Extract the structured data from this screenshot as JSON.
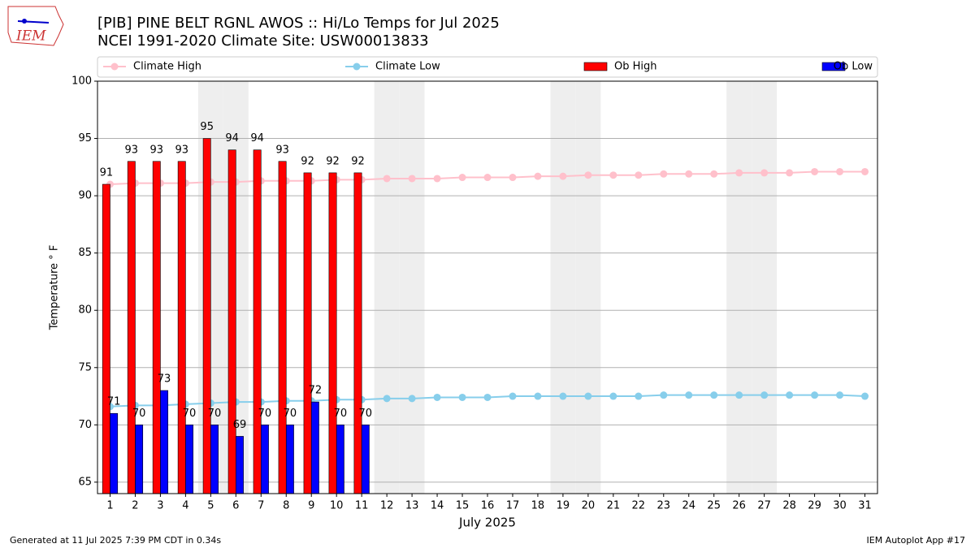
{
  "chart_data": {
    "type": "combo",
    "title": "[PIB] PINE BELT RGNL AWOS :: Hi/Lo Temps for Jul 2025",
    "subtitle": "NCEI 1991-2020 Climate Site: USW00013833",
    "ylabel": "Temperature ° F",
    "xlabel": "July 2025",
    "x": [
      1,
      2,
      3,
      4,
      5,
      6,
      7,
      8,
      9,
      10,
      11,
      12,
      13,
      14,
      15,
      16,
      17,
      18,
      19,
      20,
      21,
      22,
      23,
      24,
      25,
      26,
      27,
      28,
      29,
      30,
      31
    ],
    "xlim": [
      0.5,
      31.5
    ],
    "xticks": [
      1,
      2,
      3,
      4,
      5,
      6,
      7,
      8,
      9,
      10,
      11,
      12,
      13,
      14,
      15,
      16,
      17,
      18,
      19,
      20,
      21,
      22,
      23,
      24,
      25,
      26,
      27,
      28,
      29,
      30,
      31
    ],
    "ylim": [
      64,
      100
    ],
    "yticks": [
      65,
      70,
      75,
      80,
      85,
      90,
      95,
      100
    ],
    "grid": true,
    "legend": "top",
    "shaded_days": [
      5,
      6,
      12,
      13,
      19,
      20,
      26,
      27
    ],
    "series": [
      {
        "name": "Climate High",
        "type": "line",
        "color": "#ffc0cb",
        "values": [
          91.0,
          91.1,
          91.1,
          91.1,
          91.2,
          91.2,
          91.3,
          91.3,
          91.3,
          91.4,
          91.4,
          91.5,
          91.5,
          91.5,
          91.6,
          91.6,
          91.6,
          91.7,
          91.7,
          91.8,
          91.8,
          91.8,
          91.9,
          91.9,
          91.9,
          92.0,
          92.0,
          92.0,
          92.1,
          92.1,
          92.1
        ]
      },
      {
        "name": "Climate Low",
        "type": "line",
        "color": "#87ceeb",
        "values": [
          71.6,
          71.7,
          71.7,
          71.8,
          71.9,
          72.0,
          72.0,
          72.1,
          72.1,
          72.2,
          72.2,
          72.3,
          72.3,
          72.4,
          72.4,
          72.4,
          72.5,
          72.5,
          72.5,
          72.5,
          72.5,
          72.5,
          72.6,
          72.6,
          72.6,
          72.6,
          72.6,
          72.6,
          72.6,
          72.6,
          72.5
        ]
      },
      {
        "name": "Ob High",
        "type": "bar",
        "color": "#ff0000",
        "values": [
          91,
          93,
          93,
          93,
          95,
          94,
          94,
          93,
          92,
          92,
          92,
          null,
          null,
          null,
          null,
          null,
          null,
          null,
          null,
          null,
          null,
          null,
          null,
          null,
          null,
          null,
          null,
          null,
          null,
          null,
          null
        ]
      },
      {
        "name": "Ob Low",
        "type": "bar",
        "color": "#0000ff",
        "values": [
          71,
          70,
          73,
          70,
          70,
          69,
          70,
          70,
          72,
          70,
          70,
          null,
          null,
          null,
          null,
          null,
          null,
          null,
          null,
          null,
          null,
          null,
          null,
          null,
          null,
          null,
          null,
          null,
          null,
          null,
          null
        ]
      }
    ]
  },
  "logo_text": "IEM",
  "footer_left": "Generated at 11 Jul 2025 7:39 PM CDT in 0.34s",
  "footer_right": "IEM Autoplot App #17"
}
